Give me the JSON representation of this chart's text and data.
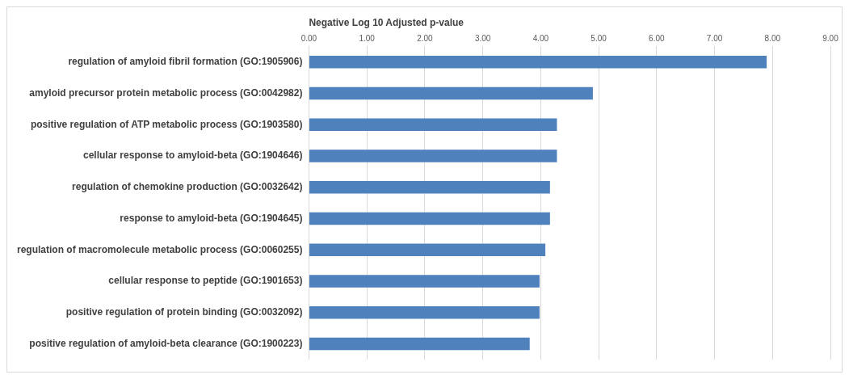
{
  "chart_data": {
    "type": "bar",
    "orientation": "horizontal",
    "xlabel": "Negative Log 10 Adjusted p-value",
    "categories": [
      "regulation of amyloid fibril formation (GO:1905906)",
      "amyloid precursor protein metabolic process (GO:0042982)",
      "positive regulation of ATP metabolic process (GO:1903580)",
      "cellular response to amyloid-beta (GO:1904646)",
      "regulation of chemokine production (GO:0032642)",
      "response to amyloid-beta (GO:1904645)",
      "regulation of macromolecule metabolic process (GO:0060255)",
      "cellular response to peptide (GO:1901653)",
      "positive regulation of protein binding (GO:0032092)",
      "positive regulation of amyloid-beta clearance (GO:1900223)"
    ],
    "values": [
      7.9,
      4.9,
      4.28,
      4.28,
      4.16,
      4.16,
      4.08,
      3.98,
      3.98,
      3.81
    ],
    "color": "#4f81bd",
    "xlim": [
      0,
      9
    ],
    "xticks": [
      {
        "value": 0,
        "label": "0.00"
      },
      {
        "value": 1,
        "label": "1.00"
      },
      {
        "value": 2,
        "label": "2.00"
      },
      {
        "value": 3,
        "label": "3.00"
      },
      {
        "value": 4,
        "label": "4.00"
      },
      {
        "value": 5,
        "label": "5.00"
      },
      {
        "value": 6,
        "label": "6.00"
      },
      {
        "value": 7,
        "label": "7.00"
      },
      {
        "value": 8,
        "label": "8.00"
      },
      {
        "value": 9,
        "label": "9.00"
      }
    ],
    "grid": "x",
    "legend": false
  }
}
